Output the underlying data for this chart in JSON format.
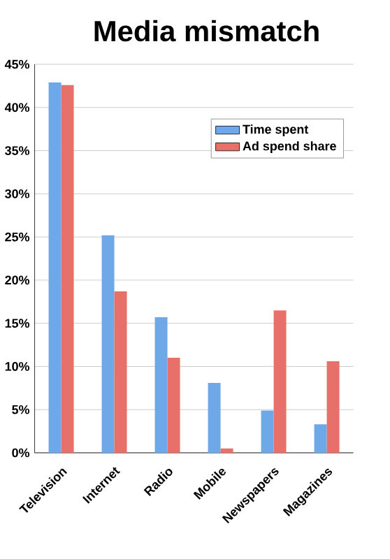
{
  "chart_data": {
    "type": "bar",
    "title": "Media mismatch",
    "categories": [
      "Television",
      "Internet",
      "Radio",
      "Mobile",
      "Newspapers",
      "Magazines"
    ],
    "series": [
      {
        "name": "Time spent",
        "color": "#6fa8e8",
        "values": [
          42.9,
          25.2,
          15.7,
          8.1,
          4.9,
          3.3
        ]
      },
      {
        "name": "Ad spend share",
        "color": "#e8706a",
        "values": [
          42.6,
          18.7,
          11.0,
          0.5,
          16.5,
          10.6
        ]
      }
    ],
    "ylim": [
      0,
      45
    ],
    "yticks": [
      {
        "value": 0,
        "label": "0%"
      },
      {
        "value": 5,
        "label": "5%"
      },
      {
        "value": 10,
        "label": "10%"
      },
      {
        "value": 15,
        "label": "15%"
      },
      {
        "value": 20,
        "label": "20%"
      },
      {
        "value": 25,
        "label": "25%"
      },
      {
        "value": 30,
        "label": "30%"
      },
      {
        "value": 35,
        "label": "35%"
      },
      {
        "value": 40,
        "label": "40%"
      },
      {
        "value": 45,
        "label": "45%"
      }
    ],
    "grid": "y",
    "legend": "top right"
  }
}
